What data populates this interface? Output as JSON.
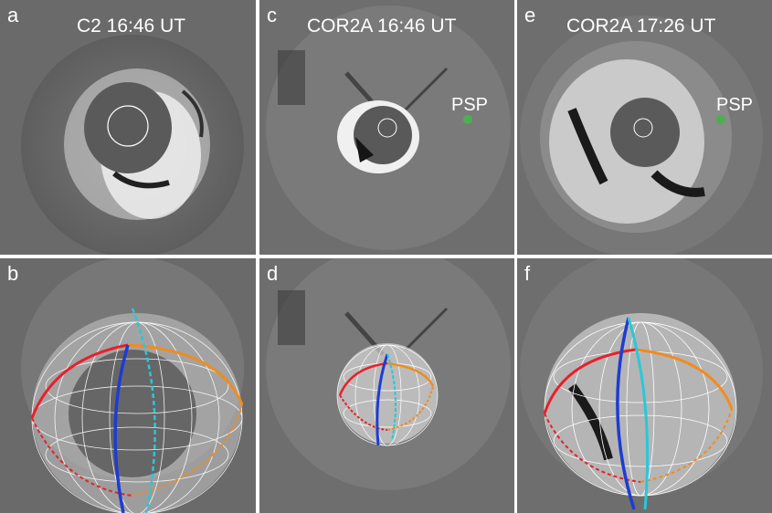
{
  "figure": {
    "panels": [
      {
        "id": "a",
        "label": "a",
        "title": "C2 16:46 UT",
        "psp": ""
      },
      {
        "id": "c",
        "label": "c",
        "title": "COR2A 16:46 UT",
        "psp": "PSP"
      },
      {
        "id": "e",
        "label": "e",
        "title": "COR2A 17:26 UT",
        "psp": "PSP"
      },
      {
        "id": "b",
        "label": "b",
        "title": "",
        "psp": ""
      },
      {
        "id": "d",
        "label": "d",
        "title": "",
        "psp": ""
      },
      {
        "id": "f",
        "label": "f",
        "title": "",
        "psp": ""
      }
    ],
    "colors": {
      "background": "#6e6e6e",
      "occulter": "#595959",
      "psp_marker": "#4caf50",
      "model_red": "#e8202a",
      "model_orange": "#f08c1e",
      "model_blue": "#1e3cd2",
      "model_cyan": "#28c8d8"
    }
  }
}
